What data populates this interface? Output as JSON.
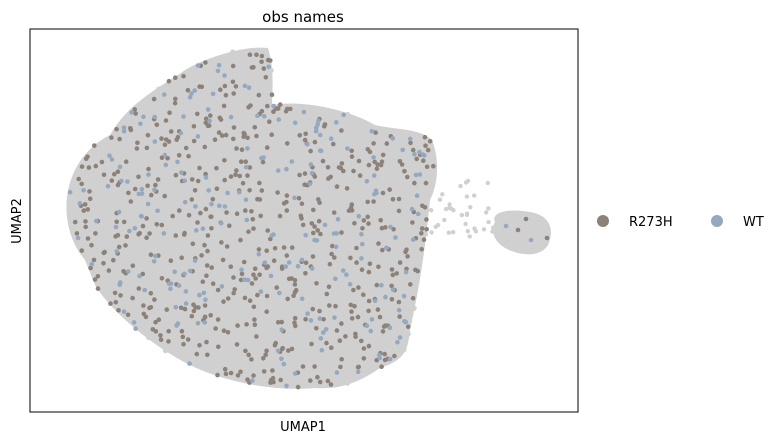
{
  "chart_data": {
    "type": "scatter",
    "title": "obs names",
    "xlabel": "UMAP1",
    "ylabel": "UMAP2",
    "grid": false,
    "ticks": false,
    "legend": {
      "placement": "right",
      "entries": [
        {
          "name": "R273H",
          "color": "#8c8279"
        },
        {
          "name": "WT",
          "color": "#94a8bf"
        }
      ]
    },
    "background_color": "#d0d0d0",
    "series": [
      {
        "name": "R273H",
        "color": "#8c8279"
      },
      {
        "name": "WT",
        "color": "#94a8bf"
      }
    ]
  }
}
